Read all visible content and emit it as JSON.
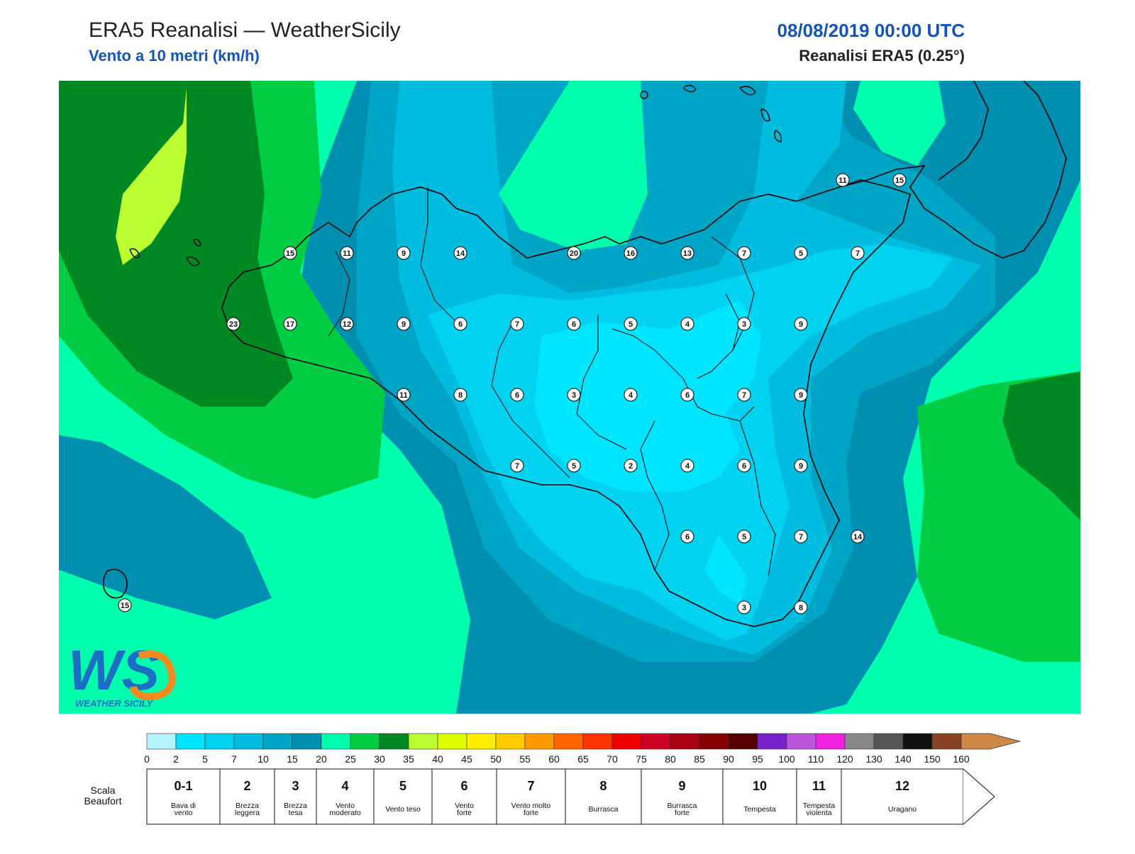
{
  "header": {
    "title": "ERA5 Reanalisi — WeatherSicily",
    "subtitle": "Vento a 10 metri (km/h)",
    "datetime": "08/08/2019 00:00 UTC",
    "source": "Reanalisi ERA5 (0.25°)"
  },
  "logo": {
    "letters": "WS",
    "text": "WEATHER SICILY"
  },
  "stations": [
    {
      "v": "15",
      "lon": 1
    },
    {
      "v": "11",
      "lon": 2
    },
    {
      "v": "9",
      "lon": 3
    },
    {
      "v": "14",
      "lon": 4
    },
    {
      "v": "20",
      "lon": 6
    },
    {
      "v": "16",
      "lon": 7
    },
    {
      "v": "13",
      "lon": 8
    },
    {
      "v": "7",
      "lon": 9
    },
    {
      "v": "5",
      "lon": 10
    },
    {
      "v": "7",
      "lon": 11
    },
    {
      "v": "23",
      "lon": 0
    },
    {
      "v": "17",
      "lon": 1
    },
    {
      "v": "12",
      "lon": 2
    },
    {
      "v": "9",
      "lon": 3
    },
    {
      "v": "6",
      "lon": 4
    },
    {
      "v": "7",
      "lon": 5
    },
    {
      "v": "6",
      "lon": 6
    },
    {
      "v": "5",
      "lon": 7
    },
    {
      "v": "4",
      "lon": 8
    },
    {
      "v": "3",
      "lon": 9
    },
    {
      "v": "9",
      "lon": 10
    },
    {
      "v": "11",
      "lon": 3
    },
    {
      "v": "8",
      "lon": 4
    },
    {
      "v": "6",
      "lon": 5
    },
    {
      "v": "3",
      "lon": 6
    },
    {
      "v": "4",
      "lon": 7
    },
    {
      "v": "6",
      "lon": 8
    },
    {
      "v": "7",
      "lon": 9
    },
    {
      "v": "9",
      "lon": 10
    },
    {
      "v": "7",
      "lon": 5
    },
    {
      "v": "5",
      "lon": 6
    },
    {
      "v": "2",
      "lon": 7
    },
    {
      "v": "4",
      "lon": 8
    },
    {
      "v": "6",
      "lon": 9
    },
    {
      "v": "9",
      "lon": 10
    },
    {
      "v": "6",
      "lon": 8
    },
    {
      "v": "5",
      "lon": 9
    },
    {
      "v": "7",
      "lon": 10
    },
    {
      "v": "14",
      "lon": 11
    },
    {
      "v": "3",
      "lon": 9
    },
    {
      "v": "8",
      "lon": 10
    },
    {
      "v": "11",
      "lon": 11
    },
    {
      "v": "15",
      "lon": 12
    },
    {
      "v": "15",
      "lon": -1
    }
  ],
  "colorbar": {
    "ticks": [
      "0",
      "2",
      "5",
      "7",
      "10",
      "15",
      "20",
      "25",
      "30",
      "35",
      "40",
      "45",
      "50",
      "55",
      "60",
      "65",
      "70",
      "75",
      "80",
      "85",
      "90",
      "95",
      "100",
      "110",
      "120",
      "130",
      "140",
      "150",
      "160"
    ],
    "colors": [
      "#b3f4ff",
      "#00e5ff",
      "#00d2f0",
      "#00bde0",
      "#00a4c4",
      "#008fb0",
      "#00ffad",
      "#00cc44",
      "#008822",
      "#bbff33",
      "#ddff00",
      "#ffee00",
      "#ffcc00",
      "#ff9900",
      "#ff6600",
      "#ff3300",
      "#ee0000",
      "#cc0022",
      "#aa0011",
      "#880000",
      "#550000",
      "#7722cc",
      "#bb55dd",
      "#ee22dd",
      "#888888",
      "#555555",
      "#111111",
      "#884422",
      "#cc8844"
    ]
  },
  "beaufort": {
    "scale_label_1": "Scala",
    "scale_label_2": "Beaufort",
    "cells": [
      {
        "num": "0-1",
        "name1": "Bava di",
        "name2": "vento"
      },
      {
        "num": "2",
        "name1": "Brezza",
        "name2": "leggera"
      },
      {
        "num": "3",
        "name1": "Brezza",
        "name2": "tesa"
      },
      {
        "num": "4",
        "name1": "Vento",
        "name2": "moderato"
      },
      {
        "num": "5",
        "name1": "Vento teso",
        "name2": ""
      },
      {
        "num": "6",
        "name1": "Vento",
        "name2": "forte"
      },
      {
        "num": "7",
        "name1": "Vento molto",
        "name2": "forte"
      },
      {
        "num": "8",
        "name1": "Burrasca",
        "name2": ""
      },
      {
        "num": "9",
        "name1": "Burrasca",
        "name2": "forte"
      },
      {
        "num": "10",
        "name1": "Tempesta",
        "name2": ""
      },
      {
        "num": "11",
        "name1": "Tempesta",
        "name2": "violenta"
      },
      {
        "num": "12",
        "name1": "Uragano",
        "name2": ""
      }
    ]
  }
}
